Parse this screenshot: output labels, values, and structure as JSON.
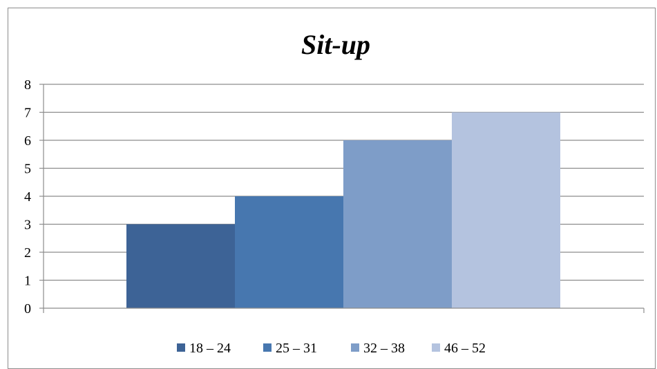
{
  "chart_data": {
    "type": "bar",
    "title": "Sit-up",
    "xlabel": "",
    "ylabel": "",
    "ylim": [
      0,
      8
    ],
    "yticks": [
      0,
      1,
      2,
      3,
      4,
      5,
      6,
      7,
      8
    ],
    "grid": true,
    "legend_position": "bottom",
    "series": [
      {
        "name": "18 – 24",
        "value": 3,
        "color": "#3d6396"
      },
      {
        "name": "25 – 31",
        "value": 4,
        "color": "#4777af"
      },
      {
        "name": "32 – 38",
        "value": 6,
        "color": "#7e9dc8"
      },
      {
        "name": "46 – 52",
        "value": 7,
        "color": "#b4c3df"
      }
    ]
  }
}
